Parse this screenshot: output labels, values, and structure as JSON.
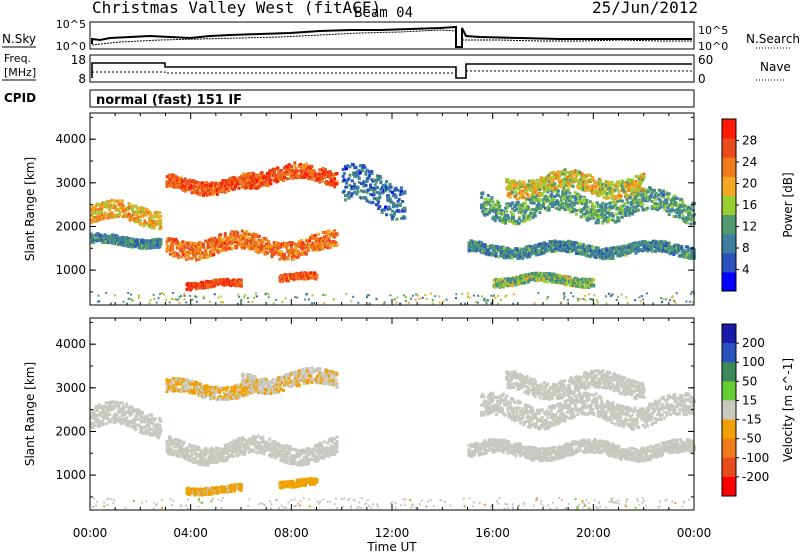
{
  "header": {
    "title": "Christmas Valley West (fitACF)",
    "beam": "Beam 04",
    "date": "25/Jun/2012"
  },
  "panels": {
    "nsky_label": "N.Sky",
    "nsearch_label": "N.Search",
    "freq_label_1": "Freq.",
    "freq_label_2": "[MHz]",
    "nave_label": "Nave",
    "cpid_label": "CPID",
    "cpid_value": "normal (fast) 151 IF",
    "noise_left_ticks": [
      "10^5",
      "10^0"
    ],
    "noise_right_ticks": [
      "10^5",
      "10^0"
    ],
    "freq_left_ticks": [
      "18",
      "8"
    ],
    "freq_right_ticks": [
      "60",
      "0"
    ]
  },
  "colors": {
    "power_scale": [
      "#0000ff",
      "#2a52be",
      "#3d7fa0",
      "#4f9a6d",
      "#9acd32",
      "#f5a623",
      "#f07a1a",
      "#e84c1e",
      "#ff1a00"
    ],
    "velocity_scale": [
      "#1a1aaa",
      "#2a52be",
      "#3a8a5a",
      "#66cc33",
      "#c8c8c0",
      "#f0a000",
      "#f07a1a",
      "#e84c1e",
      "#ff0000"
    ]
  },
  "chart_data": [
    {
      "type": "heatmap",
      "title": "Power",
      "xlabel": "Time UT",
      "ylabel": "Slant Range [km]",
      "x_ticks": [
        "00:00",
        "04:00",
        "08:00",
        "12:00",
        "16:00",
        "20:00",
        "00:00"
      ],
      "xlim": [
        0,
        24
      ],
      "y_ticks": [
        "1000",
        "2000",
        "3000",
        "4000"
      ],
      "ylim": [
        200,
        4600
      ],
      "colorbar_label": "Power [dB]",
      "colorbar_ticks": [
        "28",
        "24",
        "20",
        "16",
        "12",
        "8",
        "4"
      ],
      "colorbar_range": [
        0,
        32
      ],
      "features": [
        {
          "start": 0.0,
          "end": 2.8,
          "range": 2300,
          "value": 20,
          "width": 400
        },
        {
          "start": 0.0,
          "end": 2.8,
          "range": 1700,
          "value": 10,
          "width": 200
        },
        {
          "start": 3.0,
          "end": 6.5,
          "range": 3000,
          "value": 26,
          "width": 300
        },
        {
          "start": 3.0,
          "end": 9.8,
          "range": 1600,
          "value": 24,
          "width": 400
        },
        {
          "start": 6.0,
          "end": 9.8,
          "range": 3200,
          "value": 26,
          "width": 350
        },
        {
          "start": 3.8,
          "end": 6.0,
          "range": 700,
          "value": 28,
          "width": 150
        },
        {
          "start": 7.5,
          "end": 9.0,
          "range": 850,
          "value": 26,
          "width": 150
        },
        {
          "start": 10.0,
          "end": 12.5,
          "range": 2800,
          "value": 8,
          "width": 800
        },
        {
          "start": 15.0,
          "end": 24.0,
          "range": 1500,
          "value": 10,
          "width": 250
        },
        {
          "start": 15.5,
          "end": 24.0,
          "range": 2500,
          "value": 12,
          "width": 500
        },
        {
          "start": 16.5,
          "end": 22.0,
          "range": 3000,
          "value": 18,
          "width": 400
        },
        {
          "start": 16.0,
          "end": 20.0,
          "range": 800,
          "value": 14,
          "width": 200
        }
      ]
    },
    {
      "type": "heatmap",
      "title": "Velocity",
      "xlabel": "Time UT",
      "ylabel": "Slant Range [km]",
      "x_ticks": [
        "00:00",
        "04:00",
        "08:00",
        "12:00",
        "16:00",
        "20:00",
        "00:00"
      ],
      "xlim": [
        0,
        24
      ],
      "y_ticks": [
        "1000",
        "2000",
        "3000",
        "4000"
      ],
      "ylim": [
        200,
        4600
      ],
      "colorbar_label": "Velocity [m s^-1]",
      "colorbar_ticks": [
        "200",
        "100",
        "50",
        "15",
        "-15",
        "-50",
        "-100",
        "-200"
      ],
      "colorbar_range": [
        -250,
        250
      ],
      "features": [
        {
          "start": 0.0,
          "end": 2.8,
          "range": 2300,
          "value": 0,
          "width": 500
        },
        {
          "start": 3.0,
          "end": 6.5,
          "range": 3000,
          "value": -30,
          "width": 300
        },
        {
          "start": 3.0,
          "end": 9.8,
          "range": 1600,
          "value": 0,
          "width": 400
        },
        {
          "start": 6.0,
          "end": 9.8,
          "range": 3200,
          "value": -20,
          "width": 350
        },
        {
          "start": 3.8,
          "end": 6.0,
          "range": 700,
          "value": -40,
          "width": 150
        },
        {
          "start": 7.5,
          "end": 9.0,
          "range": 850,
          "value": -50,
          "width": 150
        },
        {
          "start": 15.0,
          "end": 24.0,
          "range": 1600,
          "value": 0,
          "width": 300
        },
        {
          "start": 15.5,
          "end": 24.0,
          "range": 2500,
          "value": 0,
          "width": 500
        },
        {
          "start": 16.5,
          "end": 22.0,
          "range": 3100,
          "value": 0,
          "width": 400
        }
      ]
    }
  ]
}
